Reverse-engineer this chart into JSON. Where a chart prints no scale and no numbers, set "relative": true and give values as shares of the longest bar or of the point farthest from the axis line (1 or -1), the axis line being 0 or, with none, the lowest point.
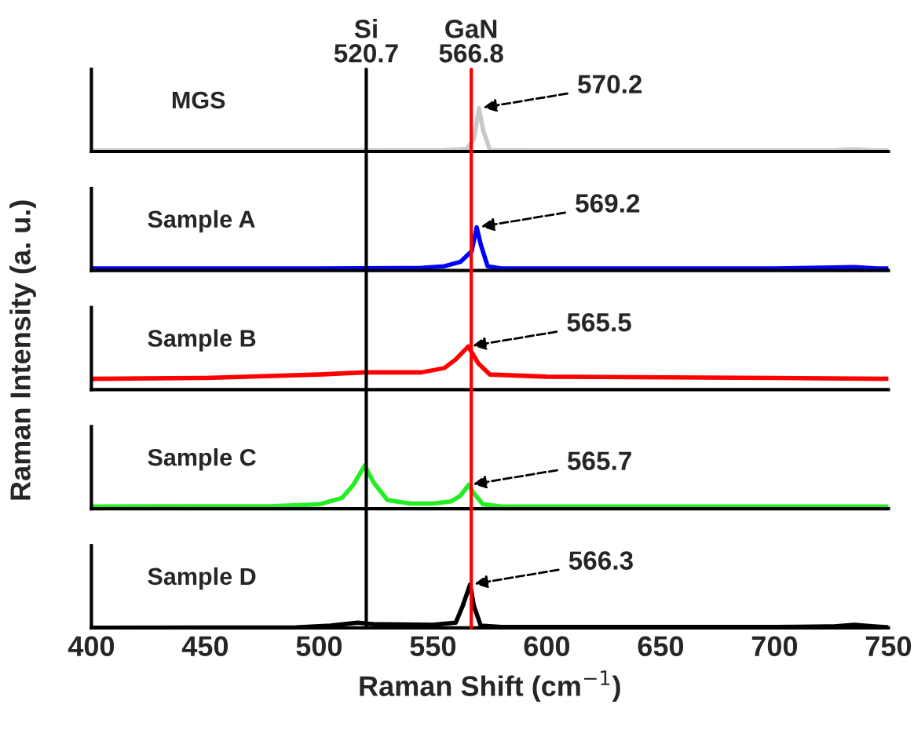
{
  "chart_data": [
    {
      "type": "line",
      "relative": true,
      "xlim": [
        400,
        750
      ],
      "xticks": [
        400,
        450,
        500,
        550,
        600,
        650,
        700,
        750
      ],
      "tick_labels": false,
      "series": [
        {
          "color": "#c8c8c8",
          "x": [
            400,
            500,
            555,
            565,
            568,
            570.2,
            572,
            575,
            600,
            700,
            725,
            735,
            745,
            750
          ],
          "values": [
            0.02,
            0.02,
            0.03,
            0.06,
            0.3,
            1,
            0.5,
            0.03,
            0.02,
            0.02,
            0.02,
            0.05,
            0.02,
            0.02
          ]
        }
      ],
      "ref_lines": [
        {
          "axis": "x",
          "value": 520.7,
          "label": "Si\n520.7",
          "color": "#000000"
        },
        {
          "axis": "x",
          "value": 566.8,
          "label": "GaN\n566.8",
          "color": "#ff0000"
        }
      ],
      "annotations": [
        "MGS",
        {
          "text": "570.2",
          "x": 570.2,
          "y": 1
        }
      ]
    },
    {
      "type": "line",
      "relative": true,
      "xlim": [
        400,
        750
      ],
      "xticks": [
        400,
        450,
        500,
        550,
        600,
        650,
        700,
        750
      ],
      "tick_labels": false,
      "series": [
        {
          "name": "Sample A",
          "color": "#0000ff",
          "x": [
            400,
            500,
            545,
            555,
            562,
            567,
            569.2,
            571,
            574,
            580,
            700,
            735,
            745,
            750
          ],
          "values": [
            0.05,
            0.05,
            0.06,
            0.1,
            0.2,
            0.45,
            1,
            0.6,
            0.1,
            0.05,
            0.05,
            0.08,
            0.05,
            0.05
          ]
        }
      ],
      "ref_lines": [
        {
          "axis": "x",
          "value": 520.7,
          "color": "#000000"
        },
        {
          "axis": "x",
          "value": 566.8,
          "color": "#ff0000"
        }
      ],
      "annotations": [
        {
          "text": "569.2",
          "x": 569.2,
          "y": 1
        }
      ]
    },
    {
      "type": "line",
      "relative": true,
      "xlim": [
        400,
        750
      ],
      "xticks": [
        400,
        450,
        500,
        550,
        600,
        650,
        700,
        750
      ],
      "tick_labels": false,
      "ylabel": "Raman Intensity (a. u.)",
      "series": [
        {
          "name": "Sample B",
          "color": "#ff0000",
          "x": [
            400,
            450,
            500,
            520,
            545,
            555,
            560,
            565.5,
            570,
            575,
            600,
            700,
            750
          ],
          "values": [
            0.25,
            0.27,
            0.35,
            0.4,
            0.4,
            0.5,
            0.7,
            1,
            0.6,
            0.35,
            0.3,
            0.27,
            0.25
          ]
        }
      ],
      "ref_lines": [
        {
          "axis": "x",
          "value": 520.7,
          "color": "#000000"
        },
        {
          "axis": "x",
          "value": 566.8,
          "color": "#ff0000"
        }
      ],
      "annotations": [
        {
          "text": "565.5",
          "x": 565.5,
          "y": 1
        }
      ]
    },
    {
      "type": "line",
      "relative": true,
      "xlim": [
        400,
        750
      ],
      "xticks": [
        400,
        450,
        500,
        550,
        600,
        650,
        700,
        750
      ],
      "tick_labels": false,
      "series": [
        {
          "name": "Sample C",
          "color": "#22ee22",
          "x": [
            400,
            480,
            500,
            510,
            515,
            520,
            524,
            530,
            540,
            550,
            558,
            562,
            565.7,
            568,
            572,
            580,
            750
          ],
          "values": [
            0.05,
            0.06,
            0.1,
            0.25,
            0.55,
            1,
            0.6,
            0.2,
            0.12,
            0.12,
            0.17,
            0.3,
            0.55,
            0.35,
            0.1,
            0.05,
            0.05
          ]
        }
      ],
      "ref_lines": [
        {
          "axis": "x",
          "value": 520.7,
          "color": "#000000"
        },
        {
          "axis": "x",
          "value": 566.8,
          "color": "#ff0000"
        }
      ],
      "annotations": [
        {
          "text": "565.7",
          "x": 565.7,
          "y": 0.55
        }
      ]
    },
    {
      "type": "line",
      "relative": true,
      "xlim": [
        400,
        750
      ],
      "xticks": [
        400,
        450,
        500,
        550,
        600,
        650,
        700,
        750
      ],
      "tick_labels": "x",
      "xlabel": "Raman Shift (cm$^{−1}$)",
      "series": [
        {
          "name": "Sample D",
          "color": "#000000",
          "x": [
            400,
            490,
            505,
            517,
            525,
            550,
            560,
            563,
            566.3,
            568,
            571,
            580,
            700,
            725,
            735,
            745,
            750
          ],
          "values": [
            0.0,
            0.01,
            0.05,
            0.12,
            0.08,
            0.07,
            0.12,
            0.5,
            1,
            0.5,
            0.05,
            0.02,
            0.02,
            0.03,
            0.07,
            0.03,
            0.01
          ]
        }
      ],
      "ref_lines": [
        {
          "axis": "x",
          "value": 520.7,
          "color": "#000000"
        },
        {
          "axis": "x",
          "value": 566.8,
          "color": "#ff0000"
        }
      ],
      "annotations": [
        {
          "text": "566.3",
          "x": 566.3,
          "y": 1
        }
      ]
    }
  ]
}
